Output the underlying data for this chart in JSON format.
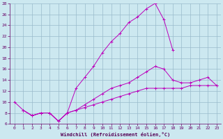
{
  "xlabel": "Windchill (Refroidissement éolien,°C)",
  "xlim": [
    -0.5,
    23.5
  ],
  "ylim": [
    6,
    28
  ],
  "xticks": [
    0,
    1,
    2,
    3,
    4,
    5,
    6,
    7,
    8,
    9,
    10,
    11,
    12,
    13,
    14,
    15,
    16,
    17,
    18,
    19,
    20,
    21,
    22,
    23
  ],
  "yticks": [
    6,
    8,
    10,
    12,
    14,
    16,
    18,
    20,
    22,
    24,
    26,
    28
  ],
  "line_color": "#bb00bb",
  "bg_color": "#cce8f0",
  "grid_color": "#99bbcc",
  "curve1_x": [
    0,
    1,
    2,
    3,
    4,
    5,
    6,
    7,
    8,
    9,
    10,
    11,
    12,
    13,
    14,
    15,
    16,
    17,
    18
  ],
  "curve1_y": [
    10,
    8.5,
    7.5,
    8.0,
    8.0,
    6.5,
    8.0,
    12.5,
    14.5,
    16.5,
    19.0,
    21.0,
    22.5,
    24.5,
    25.5,
    27.0,
    28.0,
    25.0,
    19.5
  ],
  "curve2_x": [
    1,
    2,
    3,
    4,
    5,
    6,
    7,
    8,
    9,
    10,
    11,
    12,
    13,
    14,
    15,
    16,
    17,
    18,
    19,
    20,
    21,
    22,
    23
  ],
  "curve2_y": [
    8.5,
    7.5,
    8.0,
    8.0,
    6.5,
    8.0,
    8.5,
    9.0,
    9.5,
    10.0,
    10.5,
    11.0,
    11.5,
    12.0,
    12.5,
    12.5,
    12.5,
    12.5,
    12.5,
    13.0,
    13.0,
    13.0,
    13.0
  ],
  "curve3_x": [
    1,
    2,
    3,
    4,
    5,
    6,
    7,
    8,
    9,
    10,
    11,
    12,
    13,
    14,
    15,
    16,
    17,
    18,
    19,
    20,
    21,
    22,
    23
  ],
  "curve3_y": [
    8.5,
    7.5,
    8.0,
    8.0,
    6.5,
    8.0,
    8.5,
    9.5,
    10.5,
    11.5,
    12.5,
    13.0,
    13.5,
    14.5,
    15.5,
    16.5,
    16.0,
    14.0,
    13.5,
    13.5,
    14.0,
    14.5,
    13.0
  ]
}
